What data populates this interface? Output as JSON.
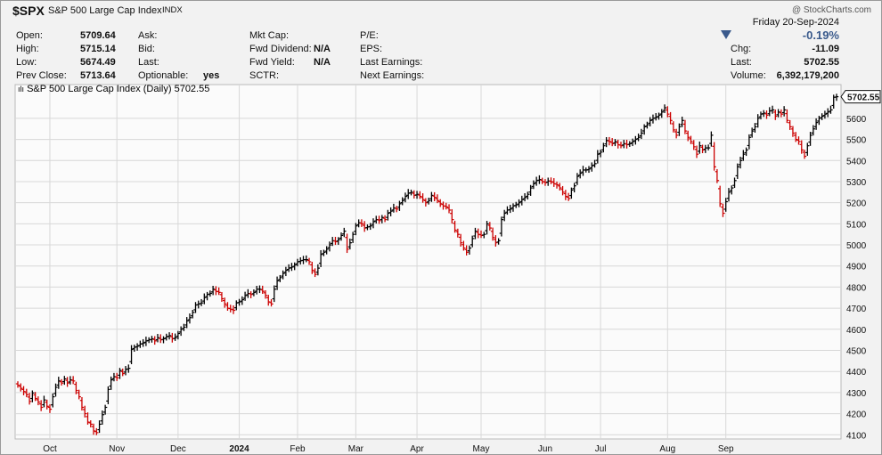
{
  "header": {
    "symbol": "$SPX",
    "name": "S&P 500 Large Cap Index",
    "exchange": "INDX",
    "watermark": "@ StockCharts.com",
    "date": "Friday  20-Sep-2024",
    "change_pct": "-0.19%",
    "direction_icon": "down-triangle",
    "fields": {
      "open_label": "Open:",
      "open": "5709.64",
      "high_label": "High:",
      "high": "5715.14",
      "low_label": "Low:",
      "low": "5674.49",
      "prev_label": "Prev Close:",
      "prev": "5713.64",
      "ask_label": "Ask:",
      "bid_label": "Bid:",
      "last_label": "Last:",
      "optionable_label": "Optionable:",
      "optionable": "yes",
      "mktcap_label": "Mkt Cap:",
      "fwddiv_label": "Fwd Dividend:",
      "fwddiv": "N/A",
      "fwdyield_label": "Fwd Yield:",
      "fwdyield": "N/A",
      "sctr_label": "SCTR:",
      "pe_label": "P/E:",
      "eps_label": "EPS:",
      "lastearn_label": "Last Earnings:",
      "nextearn_label": "Next Earnings:",
      "chg_label": "Chg:",
      "chg": "-11.09",
      "last2_label": "Last:",
      "last2": "5702.55",
      "volume_label": "Volume:",
      "volume": "6,392,179,200"
    }
  },
  "legend": {
    "text": "S&P 500 Large Cap Index (Daily) 5702.55"
  },
  "colors": {
    "up": "#000000",
    "down": "#cc0000",
    "grid": "#d8d8d8",
    "tag": "#ffffff"
  },
  "chart_data": {
    "type": "ohlc",
    "title": "S&P 500 Large Cap Index (Daily) 5702.55",
    "last_value": "5702.55",
    "ylim": [
      4080,
      5760
    ],
    "y_ticks": [
      4100,
      4200,
      4300,
      4400,
      4500,
      4600,
      4700,
      4800,
      4900,
      5000,
      5100,
      5200,
      5300,
      5400,
      5500,
      5600
    ],
    "x_labels": [
      "Oct",
      "Nov",
      "Dec",
      "2024",
      "Feb",
      "Mar",
      "Apr",
      "May",
      "Jun",
      "Jul",
      "Aug",
      "Sep"
    ],
    "x_label_positions_day_index": [
      11,
      34,
      55,
      76,
      96,
      116,
      137,
      159,
      181,
      200,
      223,
      243
    ],
    "grid": true,
    "series": [
      {
        "values_close": [
          4335,
          4320,
          4305,
          4290,
          4258,
          4298,
          4272,
          4255,
          4230,
          4265,
          4235,
          4221,
          4280,
          4325,
          4355,
          4345,
          4365,
          4345,
          4360,
          4355,
          4310,
          4280,
          4230,
          4200,
          4160,
          4150,
          4118,
          4110,
          4150,
          4195,
          4230,
          4315,
          4360,
          4375,
          4370,
          4405,
          4390,
          4410,
          4415,
          4505,
          4515,
          4520,
          4530,
          4535,
          4545,
          4550,
          4555,
          4545,
          4560,
          4550,
          4555,
          4565,
          4570,
          4555,
          4560,
          4580,
          4600,
          4610,
          4640,
          4655,
          4680,
          4715,
          4720,
          4725,
          4750,
          4765,
          4770,
          4790,
          4780,
          4775,
          4745,
          4720,
          4700,
          4695,
          4690,
          4725,
          4730,
          4740,
          4760,
          4770,
          4765,
          4775,
          4790,
          4790,
          4780,
          4760,
          4730,
          4720,
          4790,
          4830,
          4845,
          4865,
          4880,
          4890,
          4895,
          4905,
          4920,
          4925,
          4930,
          4930,
          4920,
          4880,
          4860,
          4890,
          4955,
          4965,
          4980,
          5000,
          5020,
          5015,
          5025,
          5045,
          5065,
          4980,
          5010,
          5050,
          5090,
          5105,
          5100,
          5080,
          5085,
          5090,
          5110,
          5120,
          5115,
          5130,
          5120,
          5150,
          5160,
          5175,
          5170,
          5195,
          5210,
          5230,
          5245,
          5250,
          5235,
          5240,
          5230,
          5215,
          5200,
          5210,
          5235,
          5225,
          5210,
          5195,
          5185,
          5180,
          5165,
          5120,
          5070,
          5050,
          5010,
          4985,
          4965,
          4985,
          5030,
          5065,
          5050,
          5045,
          5050,
          5100,
          5080,
          5035,
          5010,
          5020,
          5120,
          5150,
          5165,
          5170,
          5185,
          5190,
          5200,
          5215,
          5225,
          5240,
          5270,
          5290,
          5305,
          5310,
          5300,
          5295,
          5303,
          5300,
          5290,
          5285,
          5270,
          5250,
          5230,
          5220,
          5260,
          5280,
          5325,
          5340,
          5355,
          5355,
          5360,
          5375,
          5385,
          5430,
          5440,
          5470,
          5495,
          5490,
          5480,
          5490,
          5475,
          5470,
          5480,
          5475,
          5480,
          5490,
          5500,
          5510,
          5530,
          5560,
          5570,
          5590,
          5600,
          5605,
          5615,
          5630,
          5650,
          5620,
          5590,
          5545,
          5520,
          5560,
          5590,
          5540,
          5510,
          5490,
          5465,
          5430,
          5470,
          5450,
          5460,
          5460,
          5520,
          5370,
          5305,
          5195,
          5150,
          5205,
          5250,
          5270,
          5305,
          5370,
          5400,
          5430,
          5450,
          5510,
          5540,
          5560,
          5600,
          5620,
          5625,
          5615,
          5635,
          5640,
          5610,
          5630,
          5620,
          5640,
          5590,
          5560,
          5530,
          5500,
          5490,
          5450,
          5420,
          5470,
          5520,
          5550,
          5580,
          5600,
          5610,
          5620,
          5630,
          5640,
          5700,
          5702.55
        ]
      }
    ]
  }
}
